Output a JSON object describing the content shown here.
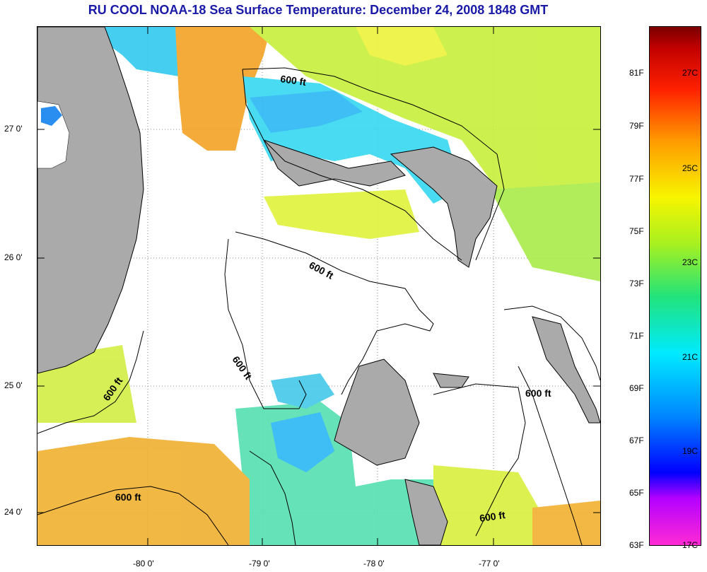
{
  "title": "RU COOL  NOAA-18  Sea Surface Temperature:  December 24, 2008 1848 GMT",
  "map": {
    "latitude_labels": [
      "27 0'",
      "26 0'",
      "25 0'",
      "24 0'"
    ],
    "longitude_labels": [
      "-80 0'",
      "-79 0'",
      "-78 0'",
      "-77 0'"
    ],
    "contour_labels": [
      "600 ft",
      "600 ft",
      "600 ft",
      "600 ft",
      "600 ft",
      "600 ft",
      "600 ft"
    ],
    "colors": {
      "land": "#aaaaaa",
      "cloud": "#ffffff",
      "title": "#1a1aa8"
    }
  },
  "colorbar": {
    "fahrenheit": [
      "81F",
      "79F",
      "77F",
      "75F",
      "73F",
      "71F",
      "69F",
      "67F",
      "65F",
      "63F"
    ],
    "celsius": [
      "27C",
      "25C",
      "23C",
      "21C",
      "19C",
      "17C"
    ]
  }
}
